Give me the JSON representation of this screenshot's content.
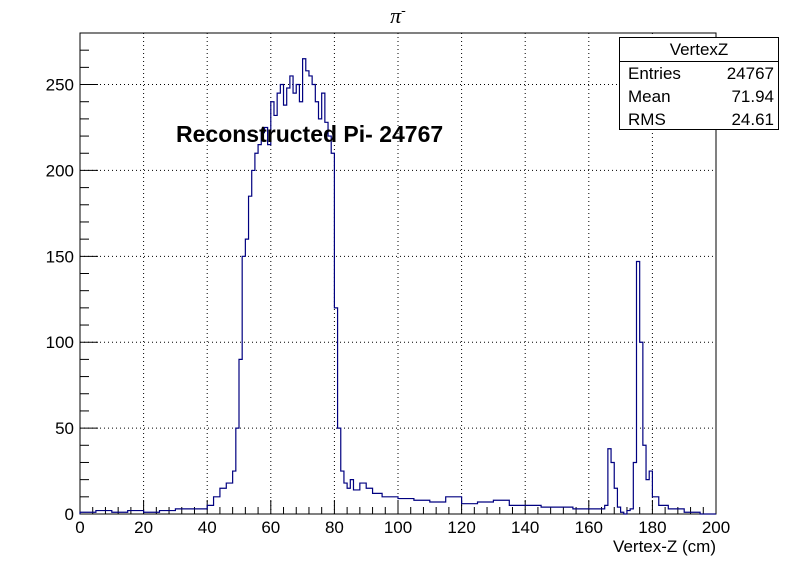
{
  "title": "π",
  "title_superscript": "-",
  "annotation": "Reconstructed Pi- 24767",
  "stats": {
    "name": "VertexZ",
    "rows": [
      {
        "label": "Entries",
        "value": "24767"
      },
      {
        "label": "Mean",
        "value": "71.94"
      },
      {
        "label": "RMS",
        "value": "24.61"
      }
    ]
  },
  "chart_data": {
    "type": "bar",
    "histogram_style": "step",
    "title": "π-",
    "xlabel": "Vertex-Z (cm)",
    "ylabel": "",
    "xlim": [
      0,
      200
    ],
    "ylim": [
      0,
      280
    ],
    "grid": true,
    "line_color": "#000080",
    "x_ticks": [
      "0",
      "20",
      "40",
      "60",
      "80",
      "100",
      "120",
      "140",
      "160",
      "180",
      "200"
    ],
    "y_ticks": [
      "0",
      "50",
      "100",
      "150",
      "200",
      "250"
    ],
    "x": [
      0,
      5,
      10,
      15,
      20,
      25,
      30,
      35,
      40,
      42,
      44,
      46,
      48,
      49,
      50,
      51,
      52,
      53,
      54,
      55,
      56,
      57,
      58,
      59,
      60,
      61,
      62,
      63,
      64,
      65,
      66,
      67,
      68,
      69,
      70,
      71,
      72,
      73,
      74,
      75,
      76,
      77,
      78,
      79,
      80,
      81,
      82,
      83,
      84,
      85,
      86,
      88,
      90,
      92,
      95,
      100,
      105,
      110,
      115,
      120,
      125,
      130,
      135,
      140,
      145,
      150,
      155,
      160,
      165,
      166,
      167,
      168,
      169,
      170,
      171,
      172,
      173,
      174,
      175,
      176,
      177,
      178,
      179,
      180,
      182,
      185,
      190,
      195
    ],
    "values": [
      1,
      2,
      1,
      2,
      1,
      2,
      3,
      3,
      5,
      10,
      15,
      18,
      25,
      50,
      90,
      150,
      160,
      185,
      200,
      210,
      215,
      222,
      225,
      215,
      240,
      232,
      245,
      250,
      238,
      248,
      255,
      245,
      250,
      240,
      265,
      258,
      255,
      250,
      240,
      230,
      245,
      228,
      220,
      210,
      120,
      50,
      25,
      18,
      15,
      20,
      14,
      18,
      15,
      12,
      10,
      9,
      8,
      7,
      10,
      6,
      7,
      8,
      5,
      5,
      4,
      4,
      3,
      3,
      5,
      38,
      30,
      15,
      4,
      1,
      0,
      2,
      3,
      30,
      147,
      100,
      40,
      20,
      25,
      10,
      5,
      3,
      1,
      0
    ]
  },
  "colors": {
    "line": "#000080",
    "grid": "#000000",
    "axis": "#000000"
  }
}
